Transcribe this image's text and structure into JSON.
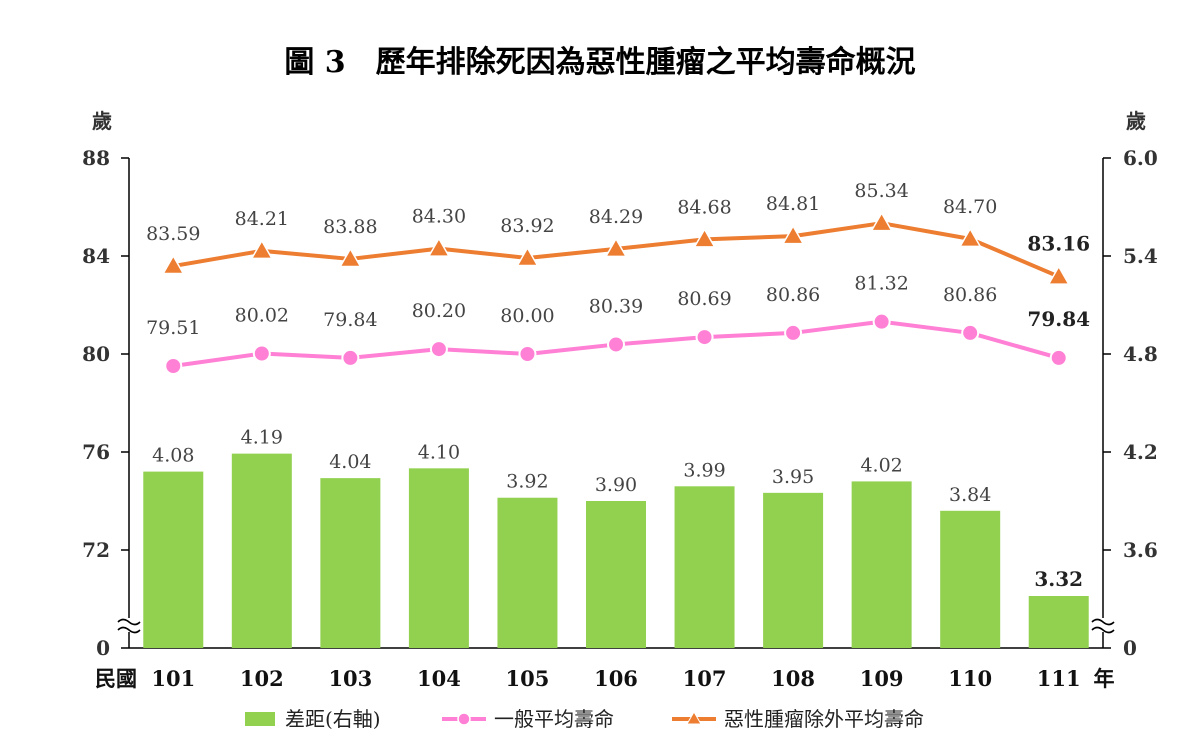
{
  "title": "圖 3　歷年排除死因為惡性腫瘤之平均壽命概況",
  "left_axis_unit": "歲",
  "right_axis_unit": "歲",
  "x_prefix": "民國",
  "x_suffix": "年",
  "left_ticks": [
    "88",
    "84",
    "80",
    "76",
    "72",
    "0"
  ],
  "right_ticks": [
    "6.0",
    "5.4",
    "4.8",
    "4.2",
    "3.6",
    "0"
  ],
  "legend": {
    "gap": "差距(右軸)",
    "general": "一般平均壽命",
    "excluded": "惡性腫瘤除外平均壽命"
  },
  "colors": {
    "bar": "#92d050",
    "general_line": "#ff80d4",
    "excluded_line": "#ed7d31",
    "axis": "#000000"
  },
  "chart_data": {
    "type": "bar",
    "categories": [
      "101",
      "102",
      "103",
      "104",
      "105",
      "106",
      "107",
      "108",
      "109",
      "110",
      "111"
    ],
    "series": [
      {
        "name": "差距(右軸)",
        "type": "bar",
        "axis": "right",
        "values": [
          4.08,
          4.19,
          4.04,
          4.1,
          3.92,
          3.9,
          3.99,
          3.95,
          4.02,
          3.84,
          3.32
        ],
        "labels": [
          "4.08",
          "4.19",
          "4.04",
          "4.10",
          "3.92",
          "3.90",
          "3.99",
          "3.95",
          "4.02",
          "3.84",
          "3.32"
        ]
      },
      {
        "name": "一般平均壽命",
        "type": "line",
        "axis": "left",
        "marker": "circle",
        "values": [
          79.51,
          80.02,
          79.84,
          80.2,
          80.0,
          80.39,
          80.69,
          80.86,
          81.32,
          80.86,
          79.84
        ],
        "labels": [
          "79.51",
          "80.02",
          "79.84",
          "80.20",
          "80.00",
          "80.39",
          "80.69",
          "80.86",
          "81.32",
          "80.86",
          "79.84"
        ]
      },
      {
        "name": "惡性腫瘤除外平均壽命",
        "type": "line",
        "axis": "left",
        "marker": "triangle",
        "values": [
          83.59,
          84.21,
          83.88,
          84.3,
          83.92,
          84.29,
          84.68,
          84.81,
          85.34,
          84.7,
          83.16
        ],
        "labels": [
          "83.59",
          "84.21",
          "83.88",
          "84.30",
          "83.92",
          "84.29",
          "84.68",
          "84.81",
          "85.34",
          "84.70",
          "83.16"
        ]
      }
    ],
    "left_axis": {
      "ticks": [
        88,
        84,
        80,
        76,
        72,
        0
      ],
      "range": [
        72,
        88
      ],
      "broken": true
    },
    "right_axis": {
      "ticks": [
        6.0,
        5.4,
        4.8,
        4.2,
        3.6,
        0
      ],
      "range": [
        3.6,
        6.0
      ],
      "broken": true
    },
    "legend_position": "bottom",
    "grid": false
  }
}
